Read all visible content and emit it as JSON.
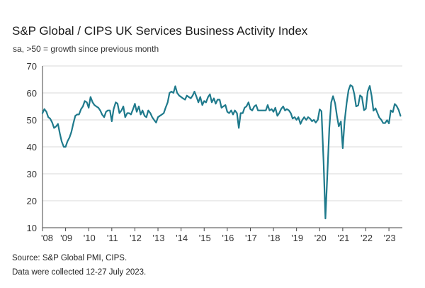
{
  "header": {
    "title": "S&P Global / CIPS UK Services Business Activity Index",
    "subtitle": "sa, >50 = growth since previous month"
  },
  "footer": {
    "source": "Source: S&P Global PMI, CIPS.",
    "collected": "Data were collected 12-27 July 2023."
  },
  "colors": {
    "line": "#1f7a8c",
    "axis": "#444444",
    "grid": "#d9d9d9"
  },
  "chart_data": {
    "type": "line",
    "title": "S&P Global / CIPS UK Services Business Activity Index",
    "subtitle": "sa, >50 = growth since previous month",
    "ylim": [
      10,
      70
    ],
    "yticks": [
      "10",
      "20",
      "30",
      "40",
      "50",
      "60",
      "70"
    ],
    "xlim": [
      2008.0,
      2023.58
    ],
    "xticks": [
      {
        "x": 2008,
        "label": "'08"
      },
      {
        "x": 2009,
        "label": "'09"
      },
      {
        "x": 2010,
        "label": "'10"
      },
      {
        "x": 2011,
        "label": "'11"
      },
      {
        "x": 2012,
        "label": "'12"
      },
      {
        "x": 2013,
        "label": "'13"
      },
      {
        "x": 2014,
        "label": "'14"
      },
      {
        "x": 2015,
        "label": "'15"
      },
      {
        "x": 2016,
        "label": "'16"
      },
      {
        "x": 2017,
        "label": "'17"
      },
      {
        "x": 2018,
        "label": "'18"
      },
      {
        "x": 2019,
        "label": "'19"
      },
      {
        "x": 2020,
        "label": "'20"
      },
      {
        "x": 2021,
        "label": "'21"
      },
      {
        "x": 2022,
        "label": "'22"
      },
      {
        "x": 2023,
        "label": "'23"
      }
    ],
    "grid": "horizontal",
    "legend": "none",
    "series": [
      {
        "points": [
          [
            2008.0,
            52.5
          ],
          [
            2008.08,
            54.0
          ],
          [
            2008.17,
            53.0
          ],
          [
            2008.25,
            51.0
          ],
          [
            2008.33,
            50.5
          ],
          [
            2008.42,
            49.0
          ],
          [
            2008.5,
            47.0
          ],
          [
            2008.58,
            47.5
          ],
          [
            2008.67,
            48.5
          ],
          [
            2008.75,
            45.0
          ],
          [
            2008.83,
            42.0
          ],
          [
            2008.92,
            40.0
          ],
          [
            2009.0,
            40.0
          ],
          [
            2009.08,
            42.0
          ],
          [
            2009.17,
            43.5
          ],
          [
            2009.25,
            45.5
          ],
          [
            2009.33,
            48.5
          ],
          [
            2009.42,
            51.5
          ],
          [
            2009.5,
            52.0
          ],
          [
            2009.58,
            52.0
          ],
          [
            2009.67,
            54.0
          ],
          [
            2009.75,
            55.0
          ],
          [
            2009.83,
            57.0
          ],
          [
            2009.92,
            56.5
          ],
          [
            2010.0,
            54.5
          ],
          [
            2010.08,
            58.5
          ],
          [
            2010.17,
            56.5
          ],
          [
            2010.25,
            55.5
          ],
          [
            2010.33,
            55.0
          ],
          [
            2010.42,
            54.5
          ],
          [
            2010.5,
            53.5
          ],
          [
            2010.58,
            52.0
          ],
          [
            2010.67,
            51.0
          ],
          [
            2010.75,
            53.0
          ],
          [
            2010.83,
            53.5
          ],
          [
            2010.92,
            53.5
          ],
          [
            2011.0,
            49.5
          ],
          [
            2011.08,
            54.0
          ],
          [
            2011.17,
            56.5
          ],
          [
            2011.25,
            56.0
          ],
          [
            2011.33,
            52.5
          ],
          [
            2011.42,
            53.5
          ],
          [
            2011.5,
            55.0
          ],
          [
            2011.58,
            51.0
          ],
          [
            2011.67,
            52.5
          ],
          [
            2011.75,
            52.5
          ],
          [
            2011.83,
            52.0
          ],
          [
            2011.92,
            54.0
          ],
          [
            2012.0,
            56.0
          ],
          [
            2012.08,
            53.0
          ],
          [
            2012.17,
            55.0
          ],
          [
            2012.25,
            52.0
          ],
          [
            2012.33,
            53.5
          ],
          [
            2012.42,
            51.5
          ],
          [
            2012.5,
            51.0
          ],
          [
            2012.58,
            53.5
          ],
          [
            2012.67,
            52.5
          ],
          [
            2012.75,
            51.0
          ],
          [
            2012.83,
            50.0
          ],
          [
            2012.92,
            49.0
          ],
          [
            2013.0,
            51.0
          ],
          [
            2013.08,
            51.5
          ],
          [
            2013.17,
            52.0
          ],
          [
            2013.25,
            52.5
          ],
          [
            2013.33,
            54.5
          ],
          [
            2013.42,
            56.5
          ],
          [
            2013.5,
            60.0
          ],
          [
            2013.58,
            60.5
          ],
          [
            2013.67,
            60.0
          ],
          [
            2013.75,
            62.5
          ],
          [
            2013.83,
            60.0
          ],
          [
            2013.92,
            59.0
          ],
          [
            2014.0,
            58.5
          ],
          [
            2014.08,
            58.0
          ],
          [
            2014.17,
            57.5
          ],
          [
            2014.25,
            59.0
          ],
          [
            2014.33,
            58.5
          ],
          [
            2014.42,
            58.0
          ],
          [
            2014.5,
            59.0
          ],
          [
            2014.58,
            60.5
          ],
          [
            2014.67,
            58.5
          ],
          [
            2014.75,
            56.5
          ],
          [
            2014.83,
            58.5
          ],
          [
            2014.92,
            55.5
          ],
          [
            2015.0,
            57.0
          ],
          [
            2015.08,
            56.5
          ],
          [
            2015.17,
            58.5
          ],
          [
            2015.25,
            59.5
          ],
          [
            2015.33,
            56.5
          ],
          [
            2015.42,
            58.0
          ],
          [
            2015.5,
            56.0
          ],
          [
            2015.58,
            57.5
          ],
          [
            2015.67,
            57.5
          ],
          [
            2015.75,
            54.5
          ],
          [
            2015.83,
            55.0
          ],
          [
            2015.92,
            55.5
          ],
          [
            2016.0,
            53.0
          ],
          [
            2016.08,
            52.5
          ],
          [
            2016.17,
            53.5
          ],
          [
            2016.25,
            52.0
          ],
          [
            2016.33,
            53.5
          ],
          [
            2016.42,
            52.5
          ],
          [
            2016.5,
            47.0
          ],
          [
            2016.58,
            52.5
          ],
          [
            2016.67,
            52.5
          ],
          [
            2016.75,
            54.5
          ],
          [
            2016.83,
            55.0
          ],
          [
            2016.92,
            56.5
          ],
          [
            2017.0,
            54.0
          ],
          [
            2017.08,
            53.5
          ],
          [
            2017.17,
            55.0
          ],
          [
            2017.25,
            55.5
          ],
          [
            2017.33,
            53.5
          ],
          [
            2017.42,
            53.5
          ],
          [
            2017.5,
            53.5
          ],
          [
            2017.58,
            53.5
          ],
          [
            2017.67,
            53.5
          ],
          [
            2017.75,
            55.5
          ],
          [
            2017.83,
            53.5
          ],
          [
            2017.92,
            54.0
          ],
          [
            2018.0,
            53.0
          ],
          [
            2018.08,
            54.5
          ],
          [
            2018.17,
            51.5
          ],
          [
            2018.25,
            52.5
          ],
          [
            2018.33,
            54.0
          ],
          [
            2018.42,
            55.0
          ],
          [
            2018.5,
            53.5
          ],
          [
            2018.58,
            54.0
          ],
          [
            2018.67,
            53.5
          ],
          [
            2018.75,
            52.5
          ],
          [
            2018.83,
            50.5
          ],
          [
            2018.92,
            51.0
          ],
          [
            2019.0,
            50.0
          ],
          [
            2019.08,
            51.0
          ],
          [
            2019.17,
            48.5
          ],
          [
            2019.25,
            50.0
          ],
          [
            2019.33,
            51.0
          ],
          [
            2019.42,
            50.0
          ],
          [
            2019.5,
            51.0
          ],
          [
            2019.58,
            50.5
          ],
          [
            2019.67,
            49.5
          ],
          [
            2019.75,
            50.0
          ],
          [
            2019.83,
            49.0
          ],
          [
            2019.92,
            50.0
          ],
          [
            2020.0,
            53.9
          ],
          [
            2020.08,
            53.2
          ],
          [
            2020.17,
            34.5
          ],
          [
            2020.25,
            13.4
          ],
          [
            2020.33,
            29.0
          ],
          [
            2020.42,
            47.1
          ],
          [
            2020.5,
            56.5
          ],
          [
            2020.58,
            58.8
          ],
          [
            2020.67,
            56.1
          ],
          [
            2020.75,
            51.4
          ],
          [
            2020.83,
            47.6
          ],
          [
            2020.92,
            49.4
          ],
          [
            2021.0,
            39.5
          ],
          [
            2021.08,
            49.5
          ],
          [
            2021.17,
            56.3
          ],
          [
            2021.25,
            61.0
          ],
          [
            2021.33,
            62.9
          ],
          [
            2021.42,
            62.4
          ],
          [
            2021.5,
            59.6
          ],
          [
            2021.58,
            55.0
          ],
          [
            2021.67,
            55.4
          ],
          [
            2021.75,
            59.1
          ],
          [
            2021.83,
            58.5
          ],
          [
            2021.92,
            53.6
          ],
          [
            2022.0,
            54.1
          ],
          [
            2022.08,
            60.5
          ],
          [
            2022.17,
            62.6
          ],
          [
            2022.25,
            58.9
          ],
          [
            2022.33,
            53.4
          ],
          [
            2022.42,
            54.3
          ],
          [
            2022.5,
            52.6
          ],
          [
            2022.58,
            50.9
          ],
          [
            2022.67,
            50.0
          ],
          [
            2022.75,
            48.8
          ],
          [
            2022.83,
            48.8
          ],
          [
            2022.92,
            49.9
          ],
          [
            2023.0,
            48.7
          ],
          [
            2023.08,
            53.5
          ],
          [
            2023.17,
            52.9
          ],
          [
            2023.25,
            55.9
          ],
          [
            2023.33,
            55.2
          ],
          [
            2023.42,
            53.7
          ],
          [
            2023.5,
            51.5
          ]
        ]
      }
    ]
  }
}
